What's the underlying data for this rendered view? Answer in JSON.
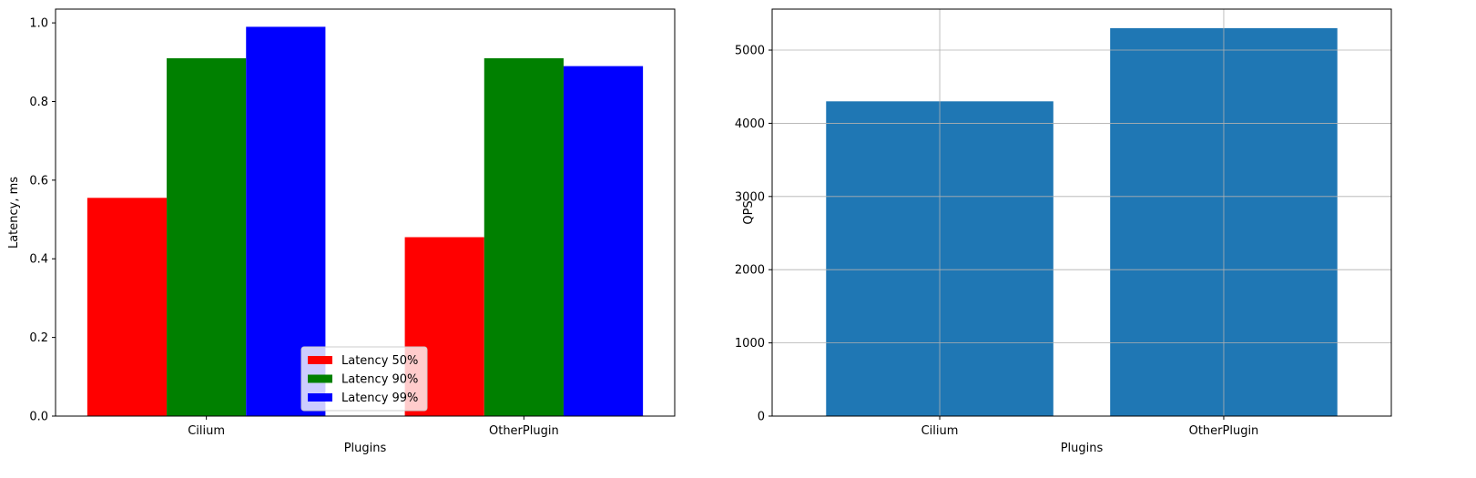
{
  "chart_data": [
    {
      "type": "bar",
      "title": "",
      "xlabel": "Plugins",
      "ylabel": "Latency, ms",
      "ylim": [
        0,
        1.035
      ],
      "yticks": [
        "0.0",
        "0.2",
        "0.4",
        "0.6",
        "0.8",
        "1.0"
      ],
      "ytick_values": [
        0,
        0.2,
        0.4,
        0.6,
        0.8,
        1.0
      ],
      "categories": [
        "Cilium",
        "OtherPlugin"
      ],
      "grid": false,
      "legend_position": "lower-center",
      "series": [
        {
          "name": "Latency 50%",
          "color": "#ff0000",
          "values": [
            0.555,
            0.455
          ]
        },
        {
          "name": "Latency 90%",
          "color": "#008000",
          "values": [
            0.91,
            0.91
          ]
        },
        {
          "name": "Latency 99%",
          "color": "#0000ff",
          "values": [
            0.99,
            0.89
          ]
        }
      ]
    },
    {
      "type": "bar",
      "title": "",
      "xlabel": "Plugins",
      "ylabel": "QPS",
      "ylim": [
        0,
        5560
      ],
      "yticks": [
        "0",
        "1000",
        "2000",
        "3000",
        "4000",
        "5000"
      ],
      "ytick_values": [
        0,
        1000,
        2000,
        3000,
        4000,
        5000
      ],
      "categories": [
        "Cilium",
        "OtherPlugin"
      ],
      "grid": true,
      "color": "#1f77b4",
      "values": [
        4300,
        5300
      ]
    }
  ]
}
